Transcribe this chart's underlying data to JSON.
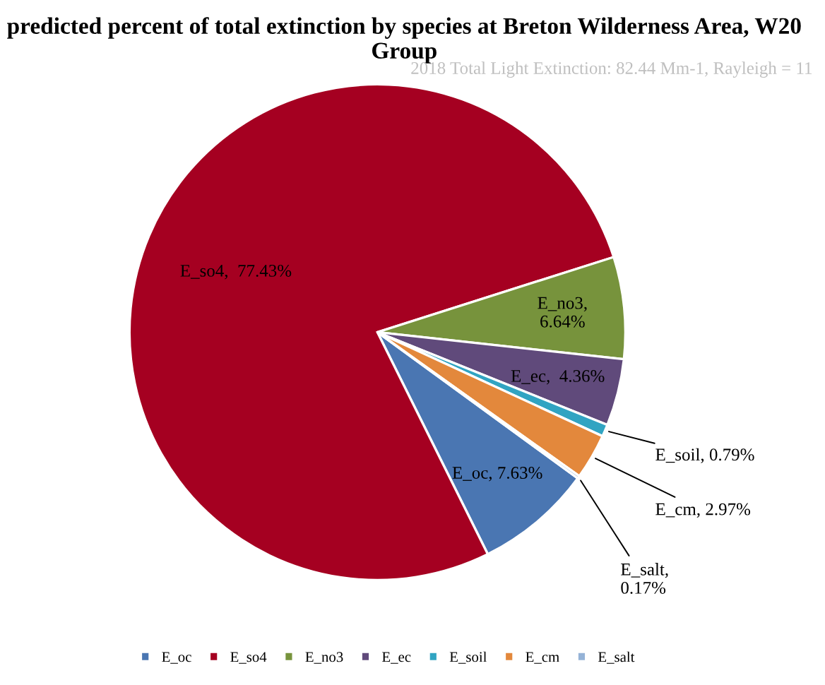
{
  "chart_data": {
    "type": "pie",
    "title": "predicted percent of total extinction by species at Breton Wilderness Area, W20 Group",
    "subtitle": "2018 Total Light Extinction: 82.44 Mm-1, Rayleigh = 11",
    "categories": [
      "E_oc",
      "E_so4",
      "E_no3",
      "E_ec",
      "E_soil",
      "E_cm",
      "E_salt"
    ],
    "values": [
      7.63,
      77.43,
      6.64,
      4.36,
      0.79,
      2.97,
      0.17
    ],
    "colors": [
      "#4a76b2",
      "#a50021",
      "#77933c",
      "#604a7b",
      "#31a4c2",
      "#e3883c",
      "#95b3d7"
    ],
    "value_labels": [
      "E_oc, 7.63%",
      "E_so4,  77.43%",
      "E_no3,\n6.64%",
      "E_ec,  4.36%",
      "E_soil, 0.79%",
      "E_cm, 2.97%",
      "E_salt,\n0.17%"
    ],
    "legend": "bottom"
  }
}
